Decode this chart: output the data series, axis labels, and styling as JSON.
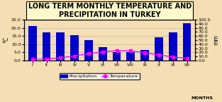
{
  "title": "LONG TERM MONTHLY TEMPERATURE AND\nPRECIPITATION IN TURKEY",
  "months": [
    "I",
    "II",
    "III",
    "IV",
    "V",
    "VI",
    "VII",
    "VIII",
    "IX",
    "X",
    "XI",
    "XII"
  ],
  "precipitation": [
    21.0,
    17.0,
    17.0,
    15.5,
    12.5,
    8.0,
    5.0,
    5.0,
    6.5,
    14.0,
    17.0,
    23.0
  ],
  "temperature": [
    3.0,
    3.5,
    6.5,
    11.0,
    16.5,
    21.0,
    24.0,
    23.5,
    19.0,
    13.5,
    8.5,
    5.0
  ],
  "bar_color": "#0000CD",
  "line_color": "#FF00FF",
  "background_color": "#F5DEB3",
  "title_box_color": "#FFFACD",
  "ylabel_left": "°C",
  "ylabel_right": "mm",
  "xlabel": "MONTHS",
  "ylim_left": [
    0.0,
    25.0
  ],
  "ylim_right": [
    0.0,
    100.0
  ],
  "yticks_left": [
    0.0,
    5.0,
    10.0,
    15.0,
    20.0,
    25.0
  ],
  "yticks_right": [
    0.0,
    10.0,
    20.0,
    30.0,
    40.0,
    50.0,
    60.0,
    70.0,
    80.0,
    90.0,
    100.0
  ],
  "legend_labels": [
    "Precipitation",
    "Temperature"
  ],
  "title_fontsize": 7.0,
  "tick_fontsize": 4.5,
  "label_fontsize": 5.5
}
